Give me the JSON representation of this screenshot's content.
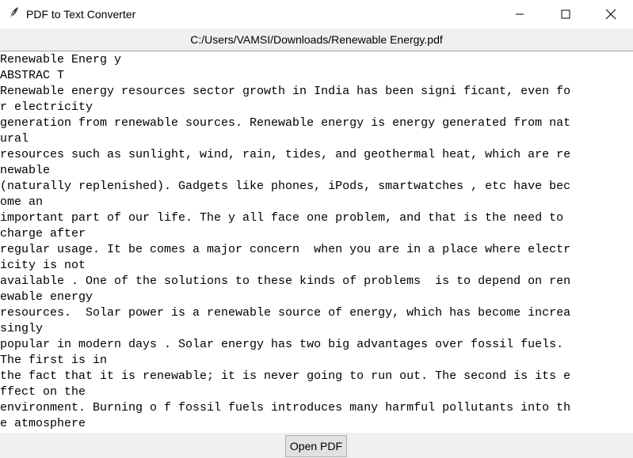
{
  "window": {
    "title": "PDF to Text Converter",
    "app_icon": "feather-icon",
    "controls": {
      "minimize_icon": "minimize-icon",
      "maximize_icon": "maximize-icon",
      "close_icon": "close-icon"
    }
  },
  "path_label": "C:/Users/VAMSI/Downloads/Renewable Energy.pdf",
  "text_area": {
    "lines": [
      "Renewable Energ y",
      "ABSTRAC T",
      "Renewable energy resources sector growth in India has been signi ficant, even fo",
      "r electricity",
      "generation from renewable sources. Renewable energy is energy generated from nat",
      "ural",
      "resources such as sunlight, wind, rain, tides, and geothermal heat, which are re",
      "newable",
      "(naturally replenished). Gadgets like phones, iPods, smartwatches , etc have bec",
      "ome an",
      "important part of our life. The y all face one problem, and that is the need to",
      "charge after",
      "regular usage. It be comes a major concern  when you are in a place where electr",
      "icity is not",
      "available . One of the solutions to these kinds of problems  is to depend on ren",
      "ewable energy",
      "resources.  Solar power is a renewable source of energy, which has become increa",
      "singly",
      "popular in modern days . Solar energy has two big advantages over fossil fuels.",
      "The first is in",
      "the fact that it is renewable; it is never going to run out. The second is its e",
      "ffect on the",
      "environment. Burning o f fossil fuels introduces many harmful pollutants into th",
      "e atmosphere"
    ]
  },
  "open_button": {
    "label": "Open PDF"
  }
}
